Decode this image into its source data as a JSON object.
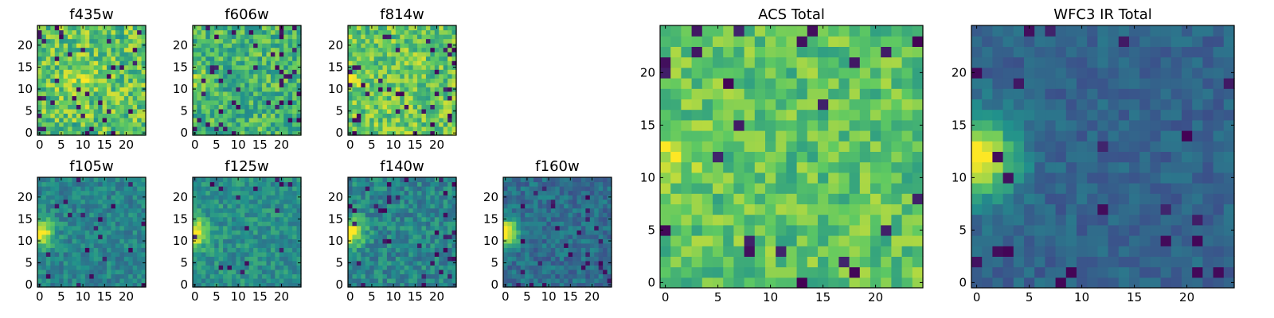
{
  "figure": {
    "description_free": true,
    "colormap": "viridis",
    "colormap_stops": [
      "#440154",
      "#3b528b",
      "#21918c",
      "#5ec962",
      "#fde725"
    ]
  },
  "chart_data": [
    {
      "type": "heatmap",
      "title": "f435w",
      "grid_size": 25,
      "xlim": [
        0,
        24
      ],
      "ylim": [
        0,
        24
      ],
      "xticks": [
        0,
        5,
        10,
        15,
        20
      ],
      "yticks": [
        0,
        5,
        10,
        15,
        20
      ],
      "xtick_labels": [
        "0",
        "5",
        "10",
        "15",
        "20"
      ],
      "ytick_labels": [
        "0",
        "5",
        "10",
        "15",
        "20"
      ],
      "value_mean": 0.72,
      "value_spread": 0.22,
      "dark_fraction": 0.05,
      "bright_blob": {
        "x": 10,
        "y": 12,
        "radius": 3,
        "strength": 0.12
      },
      "seed": 11
    },
    {
      "type": "heatmap",
      "title": "f606w",
      "grid_size": 25,
      "xlim": [
        0,
        24
      ],
      "ylim": [
        0,
        24
      ],
      "xticks": [
        0,
        5,
        10,
        15,
        20
      ],
      "yticks": [
        0,
        5,
        10,
        15,
        20
      ],
      "xtick_labels": [
        "0",
        "5",
        "10",
        "15",
        "20"
      ],
      "ytick_labels": [
        "0",
        "5",
        "10",
        "15",
        "20"
      ],
      "value_mean": 0.66,
      "value_spread": 0.2,
      "dark_fraction": 0.07,
      "bright_blob": {
        "x": 0,
        "y": 12,
        "radius": 1.5,
        "strength": 0.2
      },
      "seed": 23
    },
    {
      "type": "heatmap",
      "title": "f814w",
      "grid_size": 25,
      "xlim": [
        0,
        24
      ],
      "ylim": [
        0,
        24
      ],
      "xticks": [
        0,
        5,
        10,
        15,
        20
      ],
      "yticks": [
        0,
        5,
        10,
        15,
        20
      ],
      "xtick_labels": [
        "0",
        "5",
        "10",
        "15",
        "20"
      ],
      "ytick_labels": [
        "0",
        "5",
        "10",
        "15",
        "20"
      ],
      "value_mean": 0.74,
      "value_spread": 0.2,
      "dark_fraction": 0.06,
      "bright_blob": {
        "x": 0,
        "y": 12,
        "radius": 1.5,
        "strength": 0.25
      },
      "seed": 37
    },
    {
      "type": "heatmap",
      "title": "f105w",
      "grid_size": 25,
      "xlim": [
        0,
        24
      ],
      "ylim": [
        0,
        24
      ],
      "xticks": [
        0,
        5,
        10,
        15,
        20
      ],
      "yticks": [
        0,
        5,
        10,
        15,
        20
      ],
      "xtick_labels": [
        "0",
        "5",
        "10",
        "15",
        "20"
      ],
      "ytick_labels": [
        "0",
        "5",
        "10",
        "15",
        "20"
      ],
      "value_mean": 0.45,
      "value_spread": 0.12,
      "dark_fraction": 0.03,
      "bright_blob": {
        "x": 0,
        "y": 12,
        "radius": 2.2,
        "strength": 0.6
      },
      "seed": 41
    },
    {
      "type": "heatmap",
      "title": "f125w",
      "grid_size": 25,
      "xlim": [
        0,
        24
      ],
      "ylim": [
        0,
        24
      ],
      "xticks": [
        0,
        5,
        10,
        15,
        20
      ],
      "yticks": [
        0,
        5,
        10,
        15,
        20
      ],
      "xtick_labels": [
        "0",
        "5",
        "10",
        "15",
        "20"
      ],
      "ytick_labels": [
        "0",
        "5",
        "10",
        "15",
        "20"
      ],
      "value_mean": 0.5,
      "value_spread": 0.13,
      "dark_fraction": 0.03,
      "bright_blob": {
        "x": 0,
        "y": 12,
        "radius": 2.2,
        "strength": 0.55
      },
      "seed": 53
    },
    {
      "type": "heatmap",
      "title": "f140w",
      "grid_size": 25,
      "xlim": [
        0,
        24
      ],
      "ylim": [
        0,
        24
      ],
      "xticks": [
        0,
        5,
        10,
        15,
        20
      ],
      "yticks": [
        0,
        5,
        10,
        15,
        20
      ],
      "xtick_labels": [
        "0",
        "5",
        "10",
        "15",
        "20"
      ],
      "ytick_labels": [
        "0",
        "5",
        "10",
        "15",
        "20"
      ],
      "value_mean": 0.46,
      "value_spread": 0.14,
      "dark_fraction": 0.05,
      "bright_blob": {
        "x": 0,
        "y": 12,
        "radius": 2.2,
        "strength": 0.6
      },
      "seed": 67
    },
    {
      "type": "heatmap",
      "title": "f160w",
      "grid_size": 25,
      "xlim": [
        0,
        24
      ],
      "ylim": [
        0,
        24
      ],
      "xticks": [
        0,
        5,
        10,
        15,
        20
      ],
      "yticks": [
        0,
        5,
        10,
        15,
        20
      ],
      "xtick_labels": [
        "0",
        "5",
        "10",
        "15",
        "20"
      ],
      "ytick_labels": [
        "0",
        "5",
        "10",
        "15",
        "20"
      ],
      "value_mean": 0.36,
      "value_spread": 0.12,
      "dark_fraction": 0.05,
      "bright_blob": {
        "x": 0,
        "y": 12,
        "radius": 2.2,
        "strength": 0.7
      },
      "seed": 79
    },
    {
      "type": "heatmap",
      "title": "ACS Total",
      "grid_size": 25,
      "xlim": [
        0,
        24
      ],
      "ylim": [
        0,
        24
      ],
      "xticks": [
        0,
        5,
        10,
        15,
        20
      ],
      "yticks": [
        0,
        5,
        10,
        15,
        20
      ],
      "xtick_labels": [
        "0",
        "5",
        "10",
        "15",
        "20"
      ],
      "ytick_labels": [
        "0",
        "5",
        "10",
        "15",
        "20"
      ],
      "value_mean": 0.72,
      "value_spread": 0.16,
      "dark_fraction": 0.04,
      "bright_blob": {
        "x": 0,
        "y": 12,
        "radius": 2,
        "strength": 0.22
      },
      "seed": 97
    },
    {
      "type": "heatmap",
      "title": "WFC3 IR Total",
      "grid_size": 25,
      "xlim": [
        0,
        24
      ],
      "ylim": [
        0,
        24
      ],
      "xticks": [
        0,
        5,
        10,
        15,
        20
      ],
      "yticks": [
        0,
        5,
        10,
        15,
        20
      ],
      "xtick_labels": [
        "0",
        "5",
        "10",
        "15",
        "20"
      ],
      "ytick_labels": [
        "0",
        "5",
        "10",
        "15",
        "20"
      ],
      "value_mean": 0.32,
      "value_spread": 0.08,
      "dark_fraction": 0.04,
      "bright_blob": {
        "x": 0,
        "y": 12,
        "radius": 2.6,
        "strength": 0.7
      },
      "seed": 113
    }
  ]
}
